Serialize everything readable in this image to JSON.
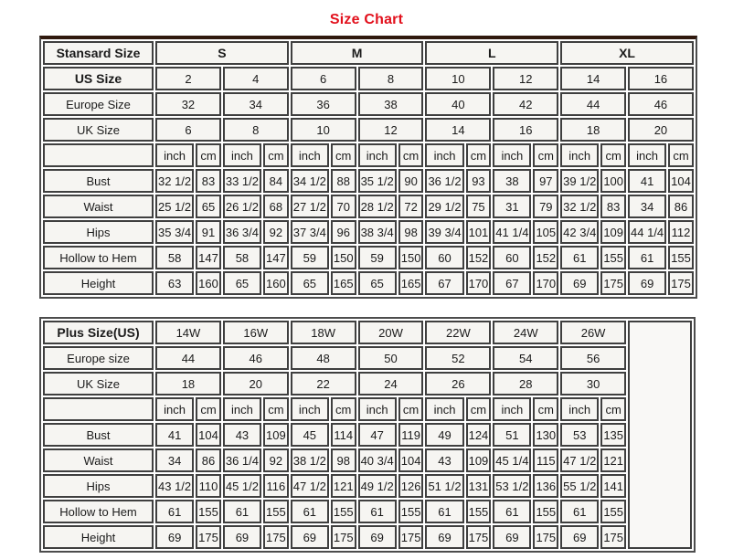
{
  "page": {
    "title": "Size Chart",
    "title_color": "#e2101c"
  },
  "standard_table": {
    "size_row": {
      "label": "Stansard Size",
      "bold": true,
      "sizes_bold": true,
      "sizes": [
        "S",
        "M",
        "L",
        "XL"
      ]
    },
    "info_rows": [
      {
        "label": "US Size",
        "bold": true,
        "values": [
          "2",
          "4",
          "6",
          "8",
          "10",
          "12",
          "14",
          "16"
        ]
      },
      {
        "label": "Europe Size",
        "bold": false,
        "values": [
          "32",
          "34",
          "36",
          "38",
          "40",
          "42",
          "44",
          "46"
        ]
      },
      {
        "label": "UK Size",
        "bold": false,
        "values": [
          "6",
          "8",
          "10",
          "12",
          "14",
          "16",
          "18",
          "20"
        ]
      }
    ],
    "units": [
      "inch",
      "cm"
    ],
    "measure_rows": [
      {
        "label": "Bust",
        "values": [
          "32 1/2",
          "83",
          "33 1/2",
          "84",
          "34 1/2",
          "88",
          "35 1/2",
          "90",
          "36 1/2",
          "93",
          "38",
          "97",
          "39 1/2",
          "100",
          "41",
          "104"
        ]
      },
      {
        "label": "Waist",
        "values": [
          "25 1/2",
          "65",
          "26 1/2",
          "68",
          "27 1/2",
          "70",
          "28 1/2",
          "72",
          "29 1/2",
          "75",
          "31",
          "79",
          "32 1/2",
          "83",
          "34",
          "86"
        ]
      },
      {
        "label": "Hips",
        "values": [
          "35 3/4",
          "91",
          "36 3/4",
          "92",
          "37 3/4",
          "96",
          "38 3/4",
          "98",
          "39 3/4",
          "101",
          "41 1/4",
          "105",
          "42 3/4",
          "109",
          "44 1/4",
          "112"
        ]
      },
      {
        "label": "Hollow to Hem",
        "values": [
          "58",
          "147",
          "58",
          "147",
          "59",
          "150",
          "59",
          "150",
          "60",
          "152",
          "60",
          "152",
          "61",
          "155",
          "61",
          "155"
        ]
      },
      {
        "label": "Height",
        "values": [
          "63",
          "160",
          "65",
          "160",
          "65",
          "165",
          "65",
          "165",
          "67",
          "170",
          "67",
          "170",
          "69",
          "175",
          "69",
          "175"
        ]
      }
    ],
    "trailing_empty_column": false
  },
  "plus_table": {
    "size_row": {
      "label": "Plus Size(US)",
      "bold": true,
      "sizes_bold": false,
      "sizes": [
        "14W",
        "16W",
        "18W",
        "20W",
        "22W",
        "24W",
        "26W"
      ]
    },
    "info_rows": [
      {
        "label": "Europe size",
        "bold": false,
        "values": [
          "44",
          "46",
          "48",
          "50",
          "52",
          "54",
          "56"
        ]
      },
      {
        "label": "UK Size",
        "bold": false,
        "values": [
          "18",
          "20",
          "22",
          "24",
          "26",
          "28",
          "30"
        ]
      }
    ],
    "units": [
      "inch",
      "cm"
    ],
    "measure_rows": [
      {
        "label": "Bust",
        "values": [
          "41",
          "104",
          "43",
          "109",
          "45",
          "114",
          "47",
          "119",
          "49",
          "124",
          "51",
          "130",
          "53",
          "135"
        ]
      },
      {
        "label": "Waist",
        "values": [
          "34",
          "86",
          "36 1/4",
          "92",
          "38 1/2",
          "98",
          "40 3/4",
          "104",
          "43",
          "109",
          "45 1/4",
          "115",
          "47 1/2",
          "121"
        ]
      },
      {
        "label": "Hips",
        "values": [
          "43 1/2",
          "110",
          "45 1/2",
          "116",
          "47 1/2",
          "121",
          "49 1/2",
          "126",
          "51 1/2",
          "131",
          "53 1/2",
          "136",
          "55 1/2",
          "141"
        ]
      },
      {
        "label": "Hollow to Hem",
        "values": [
          "61",
          "155",
          "61",
          "155",
          "61",
          "155",
          "61",
          "155",
          "61",
          "155",
          "61",
          "155",
          "61",
          "155"
        ]
      },
      {
        "label": "Height",
        "values": [
          "69",
          "175",
          "69",
          "175",
          "69",
          "175",
          "69",
          "175",
          "69",
          "175",
          "69",
          "175",
          "69",
          "175"
        ]
      }
    ],
    "trailing_empty_column": true
  }
}
